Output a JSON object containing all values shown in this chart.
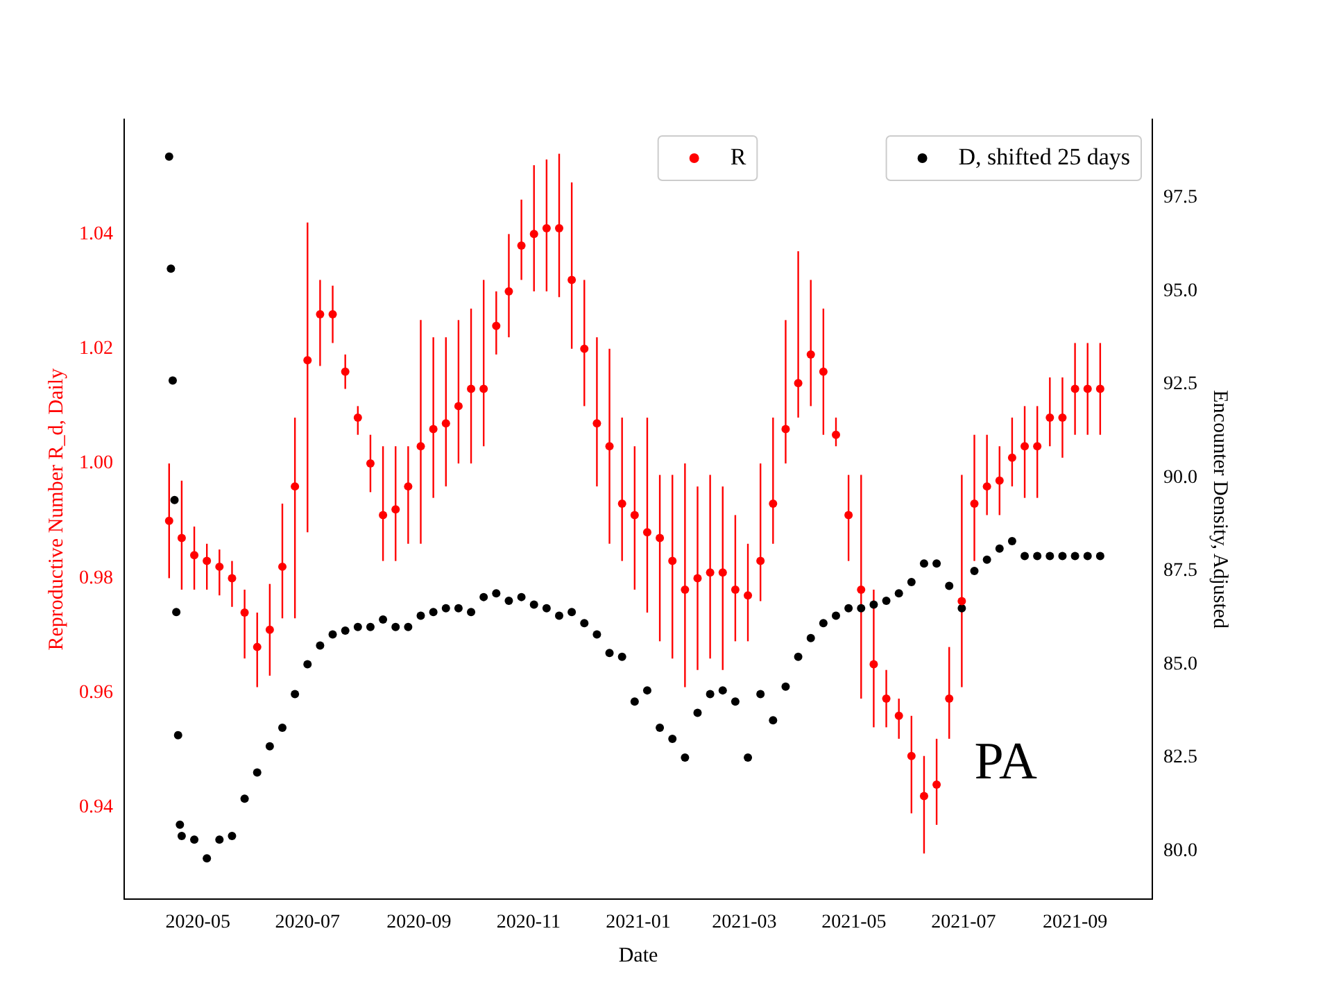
{
  "chart_data": {
    "type": "scatter",
    "xlabel": "Date",
    "ylabel": "Reproductive Number R_d, Daily",
    "y2label": "Encounter Density, Adjusted",
    "xlim": [
      "2020-03-21",
      "2021-10-14"
    ],
    "xticks": [
      "2020-05",
      "2020-07",
      "2020-09",
      "2020-11",
      "2021-01",
      "2021-03",
      "2021-05",
      "2021-07",
      "2021-09"
    ],
    "ylim": [
      0.924,
      1.06
    ],
    "yticks": [
      0.94,
      0.96,
      0.98,
      {
        "value": 1,
        "label": "1.00"
      },
      1.02,
      1.04
    ],
    "y2lim": [
      78.7,
      99.6
    ],
    "y2ticks": [
      {
        "value": 80,
        "label": "80.0"
      },
      82.5,
      {
        "value": 85,
        "label": "85.0"
      },
      87.5,
      {
        "value": 90,
        "label": "90.0"
      },
      92.5,
      {
        "value": 95,
        "label": "95.0"
      },
      97.5
    ],
    "legend": "top right",
    "marker": "circle",
    "grid": false,
    "annotations": [
      "PA"
    ],
    "series": [
      {
        "name": "R",
        "color": "#ff0000",
        "x": [
          "2020-04-15",
          "2020-04-22",
          "2020-04-29",
          "2020-05-06",
          "2020-05-13",
          "2020-05-20",
          "2020-05-27",
          "2020-06-03",
          "2020-06-10",
          "2020-06-17",
          "2020-06-24",
          "2020-07-01",
          "2020-07-08",
          "2020-07-15",
          "2020-07-22",
          "2020-07-29",
          "2020-08-05",
          "2020-08-12",
          "2020-08-19",
          "2020-08-26",
          "2020-09-02",
          "2020-09-09",
          "2020-09-16",
          "2020-09-23",
          "2020-09-30",
          "2020-10-07",
          "2020-10-14",
          "2020-10-21",
          "2020-10-28",
          "2020-11-04",
          "2020-11-11",
          "2020-11-18",
          "2020-11-25",
          "2020-12-02",
          "2020-12-09",
          "2020-12-16",
          "2020-12-23",
          "2020-12-30",
          "2021-01-06",
          "2021-01-13",
          "2021-01-20",
          "2021-01-27",
          "2021-02-03",
          "2021-02-10",
          "2021-02-17",
          "2021-02-24",
          "2021-03-03",
          "2021-03-10",
          "2021-03-17",
          "2021-03-24",
          "2021-03-31",
          "2021-04-07",
          "2021-04-14",
          "2021-04-21",
          "2021-04-28",
          "2021-05-05",
          "2021-05-12",
          "2021-05-19",
          "2021-05-26",
          "2021-06-02",
          "2021-06-09",
          "2021-06-16",
          "2021-06-23",
          "2021-06-30",
          "2021-07-07",
          "2021-07-14",
          "2021-07-21",
          "2021-07-28",
          "2021-08-04",
          "2021-08-11",
          "2021-08-18",
          "2021-08-25",
          "2021-09-01",
          "2021-09-08",
          "2021-09-15"
        ],
        "values": [
          0.99,
          0.987,
          0.984,
          0.983,
          0.982,
          0.98,
          0.974,
          0.968,
          0.971,
          0.982,
          0.996,
          1.018,
          1.026,
          1.026,
          1.016,
          1.008,
          1.0,
          0.991,
          0.992,
          0.996,
          1.003,
          1.006,
          1.007,
          1.01,
          1.013,
          1.013,
          1.024,
          1.03,
          1.038,
          1.04,
          1.041,
          1.041,
          1.032,
          1.02,
          1.007,
          1.003,
          0.993,
          0.991,
          0.988,
          0.987,
          0.983,
          0.978,
          0.98,
          0.981,
          0.981,
          0.978,
          0.977,
          0.983,
          0.993,
          1.006,
          1.014,
          1.019,
          1.016,
          1.005,
          0.991,
          0.978,
          0.965,
          0.959,
          0.956,
          0.949,
          0.942,
          0.944,
          0.959,
          0.976,
          0.993,
          0.996,
          0.997,
          1.001,
          1.003,
          1.003,
          1.008,
          1.008,
          1.013,
          1.013,
          1.013
        ],
        "errors": [
          [
            0.98,
            1.0
          ],
          [
            0.978,
            0.997
          ],
          [
            0.978,
            0.989
          ],
          [
            0.978,
            0.986
          ],
          [
            0.977,
            0.985
          ],
          [
            0.975,
            0.983
          ],
          [
            0.966,
            0.978
          ],
          [
            0.961,
            0.974
          ],
          [
            0.963,
            0.979
          ],
          [
            0.973,
            0.993
          ],
          [
            0.973,
            1.008
          ],
          [
            0.988,
            1.042
          ],
          [
            1.017,
            1.032
          ],
          [
            1.021,
            1.031
          ],
          [
            1.013,
            1.019
          ],
          [
            1.005,
            1.01
          ],
          [
            0.995,
            1.005
          ],
          [
            0.983,
            1.003
          ],
          [
            0.983,
            1.003
          ],
          [
            0.986,
            1.003
          ],
          [
            0.986,
            1.025
          ],
          [
            0.994,
            1.022
          ],
          [
            0.996,
            1.022
          ],
          [
            1.0,
            1.025
          ],
          [
            1.0,
            1.027
          ],
          [
            1.003,
            1.032
          ],
          [
            1.019,
            1.03
          ],
          [
            1.022,
            1.04
          ],
          [
            1.032,
            1.046
          ],
          [
            1.03,
            1.052
          ],
          [
            1.03,
            1.053
          ],
          [
            1.029,
            1.054
          ],
          [
            1.02,
            1.049
          ],
          [
            1.01,
            1.032
          ],
          [
            0.996,
            1.022
          ],
          [
            0.986,
            1.02
          ],
          [
            0.983,
            1.008
          ],
          [
            0.978,
            1.003
          ],
          [
            0.974,
            1.008
          ],
          [
            0.969,
            0.998
          ],
          [
            0.966,
            0.998
          ],
          [
            0.961,
            1.0
          ],
          [
            0.964,
            0.996
          ],
          [
            0.966,
            0.998
          ],
          [
            0.964,
            0.996
          ],
          [
            0.969,
            0.991
          ],
          [
            0.969,
            0.986
          ],
          [
            0.976,
            1.0
          ],
          [
            0.986,
            1.008
          ],
          [
            1.0,
            1.025
          ],
          [
            1.008,
            1.037
          ],
          [
            1.01,
            1.032
          ],
          [
            1.005,
            1.027
          ],
          [
            1.003,
            1.008
          ],
          [
            0.983,
            0.998
          ],
          [
            0.959,
            0.998
          ],
          [
            0.954,
            0.978
          ],
          [
            0.954,
            0.964
          ],
          [
            0.952,
            0.959
          ],
          [
            0.939,
            0.956
          ],
          [
            0.932,
            0.949
          ],
          [
            0.937,
            0.952
          ],
          [
            0.952,
            0.968
          ],
          [
            0.961,
            0.998
          ],
          [
            0.983,
            1.005
          ],
          [
            0.991,
            1.005
          ],
          [
            0.991,
            1.003
          ],
          [
            0.996,
            1.008
          ],
          [
            0.994,
            1.01
          ],
          [
            0.994,
            1.01
          ],
          [
            1.003,
            1.015
          ],
          [
            1.001,
            1.015
          ],
          [
            1.005,
            1.021
          ],
          [
            1.005,
            1.021
          ],
          [
            1.005,
            1.021
          ]
        ]
      },
      {
        "name": "D, shifted 25 days",
        "color": "#000000",
        "axis": "y2",
        "x": [
          "2020-04-15",
          "2020-04-16",
          "2020-04-17",
          "2020-04-18",
          "2020-04-19",
          "2020-04-20",
          "2020-04-21",
          "2020-04-22",
          "2020-04-29",
          "2020-05-06",
          "2020-05-13",
          "2020-05-20",
          "2020-05-27",
          "2020-06-03",
          "2020-06-10",
          "2020-06-17",
          "2020-06-24",
          "2020-07-01",
          "2020-07-08",
          "2020-07-15",
          "2020-07-22",
          "2020-07-29",
          "2020-08-05",
          "2020-08-12",
          "2020-08-19",
          "2020-08-26",
          "2020-09-02",
          "2020-09-09",
          "2020-09-16",
          "2020-09-23",
          "2020-09-30",
          "2020-10-07",
          "2020-10-14",
          "2020-10-21",
          "2020-10-28",
          "2020-11-04",
          "2020-11-11",
          "2020-11-18",
          "2020-11-25",
          "2020-12-02",
          "2020-12-09",
          "2020-12-16",
          "2020-12-23",
          "2020-12-30",
          "2021-01-06",
          "2021-01-13",
          "2021-01-20",
          "2021-01-27",
          "2021-02-03",
          "2021-02-10",
          "2021-02-17",
          "2021-02-24",
          "2021-03-03",
          "2021-03-10",
          "2021-03-17",
          "2021-03-24",
          "2021-03-31",
          "2021-04-07",
          "2021-04-14",
          "2021-04-21",
          "2021-04-28",
          "2021-05-05",
          "2021-05-12",
          "2021-05-19",
          "2021-05-26",
          "2021-06-02",
          "2021-06-09",
          "2021-06-16",
          "2021-06-23",
          "2021-06-30",
          "2021-07-07",
          "2021-07-14",
          "2021-07-21",
          "2021-07-28",
          "2021-08-04",
          "2021-08-11",
          "2021-08-18",
          "2021-08-25",
          "2021-09-01",
          "2021-09-08",
          "2021-09-15"
        ],
        "values": [
          98.6,
          95.6,
          92.6,
          89.4,
          86.4,
          83.1,
          80.7,
          80.4,
          80.3,
          79.8,
          80.3,
          80.4,
          81.4,
          82.1,
          82.8,
          83.3,
          84.2,
          85.0,
          85.5,
          85.8,
          85.9,
          86.0,
          86.0,
          86.2,
          86.0,
          86.0,
          86.3,
          86.4,
          86.5,
          86.5,
          86.4,
          86.8,
          86.9,
          86.7,
          86.8,
          86.6,
          86.5,
          86.3,
          86.4,
          86.1,
          85.8,
          85.3,
          85.2,
          84.0,
          84.3,
          83.3,
          83.0,
          82.5,
          83.7,
          84.2,
          84.3,
          84.0,
          82.5,
          84.2,
          83.5,
          84.4,
          85.2,
          85.7,
          86.1,
          86.3,
          86.5,
          86.5,
          86.6,
          86.7,
          86.9,
          87.2,
          87.7,
          87.7,
          87.1,
          86.5,
          87.5,
          87.8,
          88.1,
          88.3,
          87.9,
          87.9,
          87.9,
          87.9,
          87.9,
          87.9,
          87.9
        ]
      }
    ]
  }
}
